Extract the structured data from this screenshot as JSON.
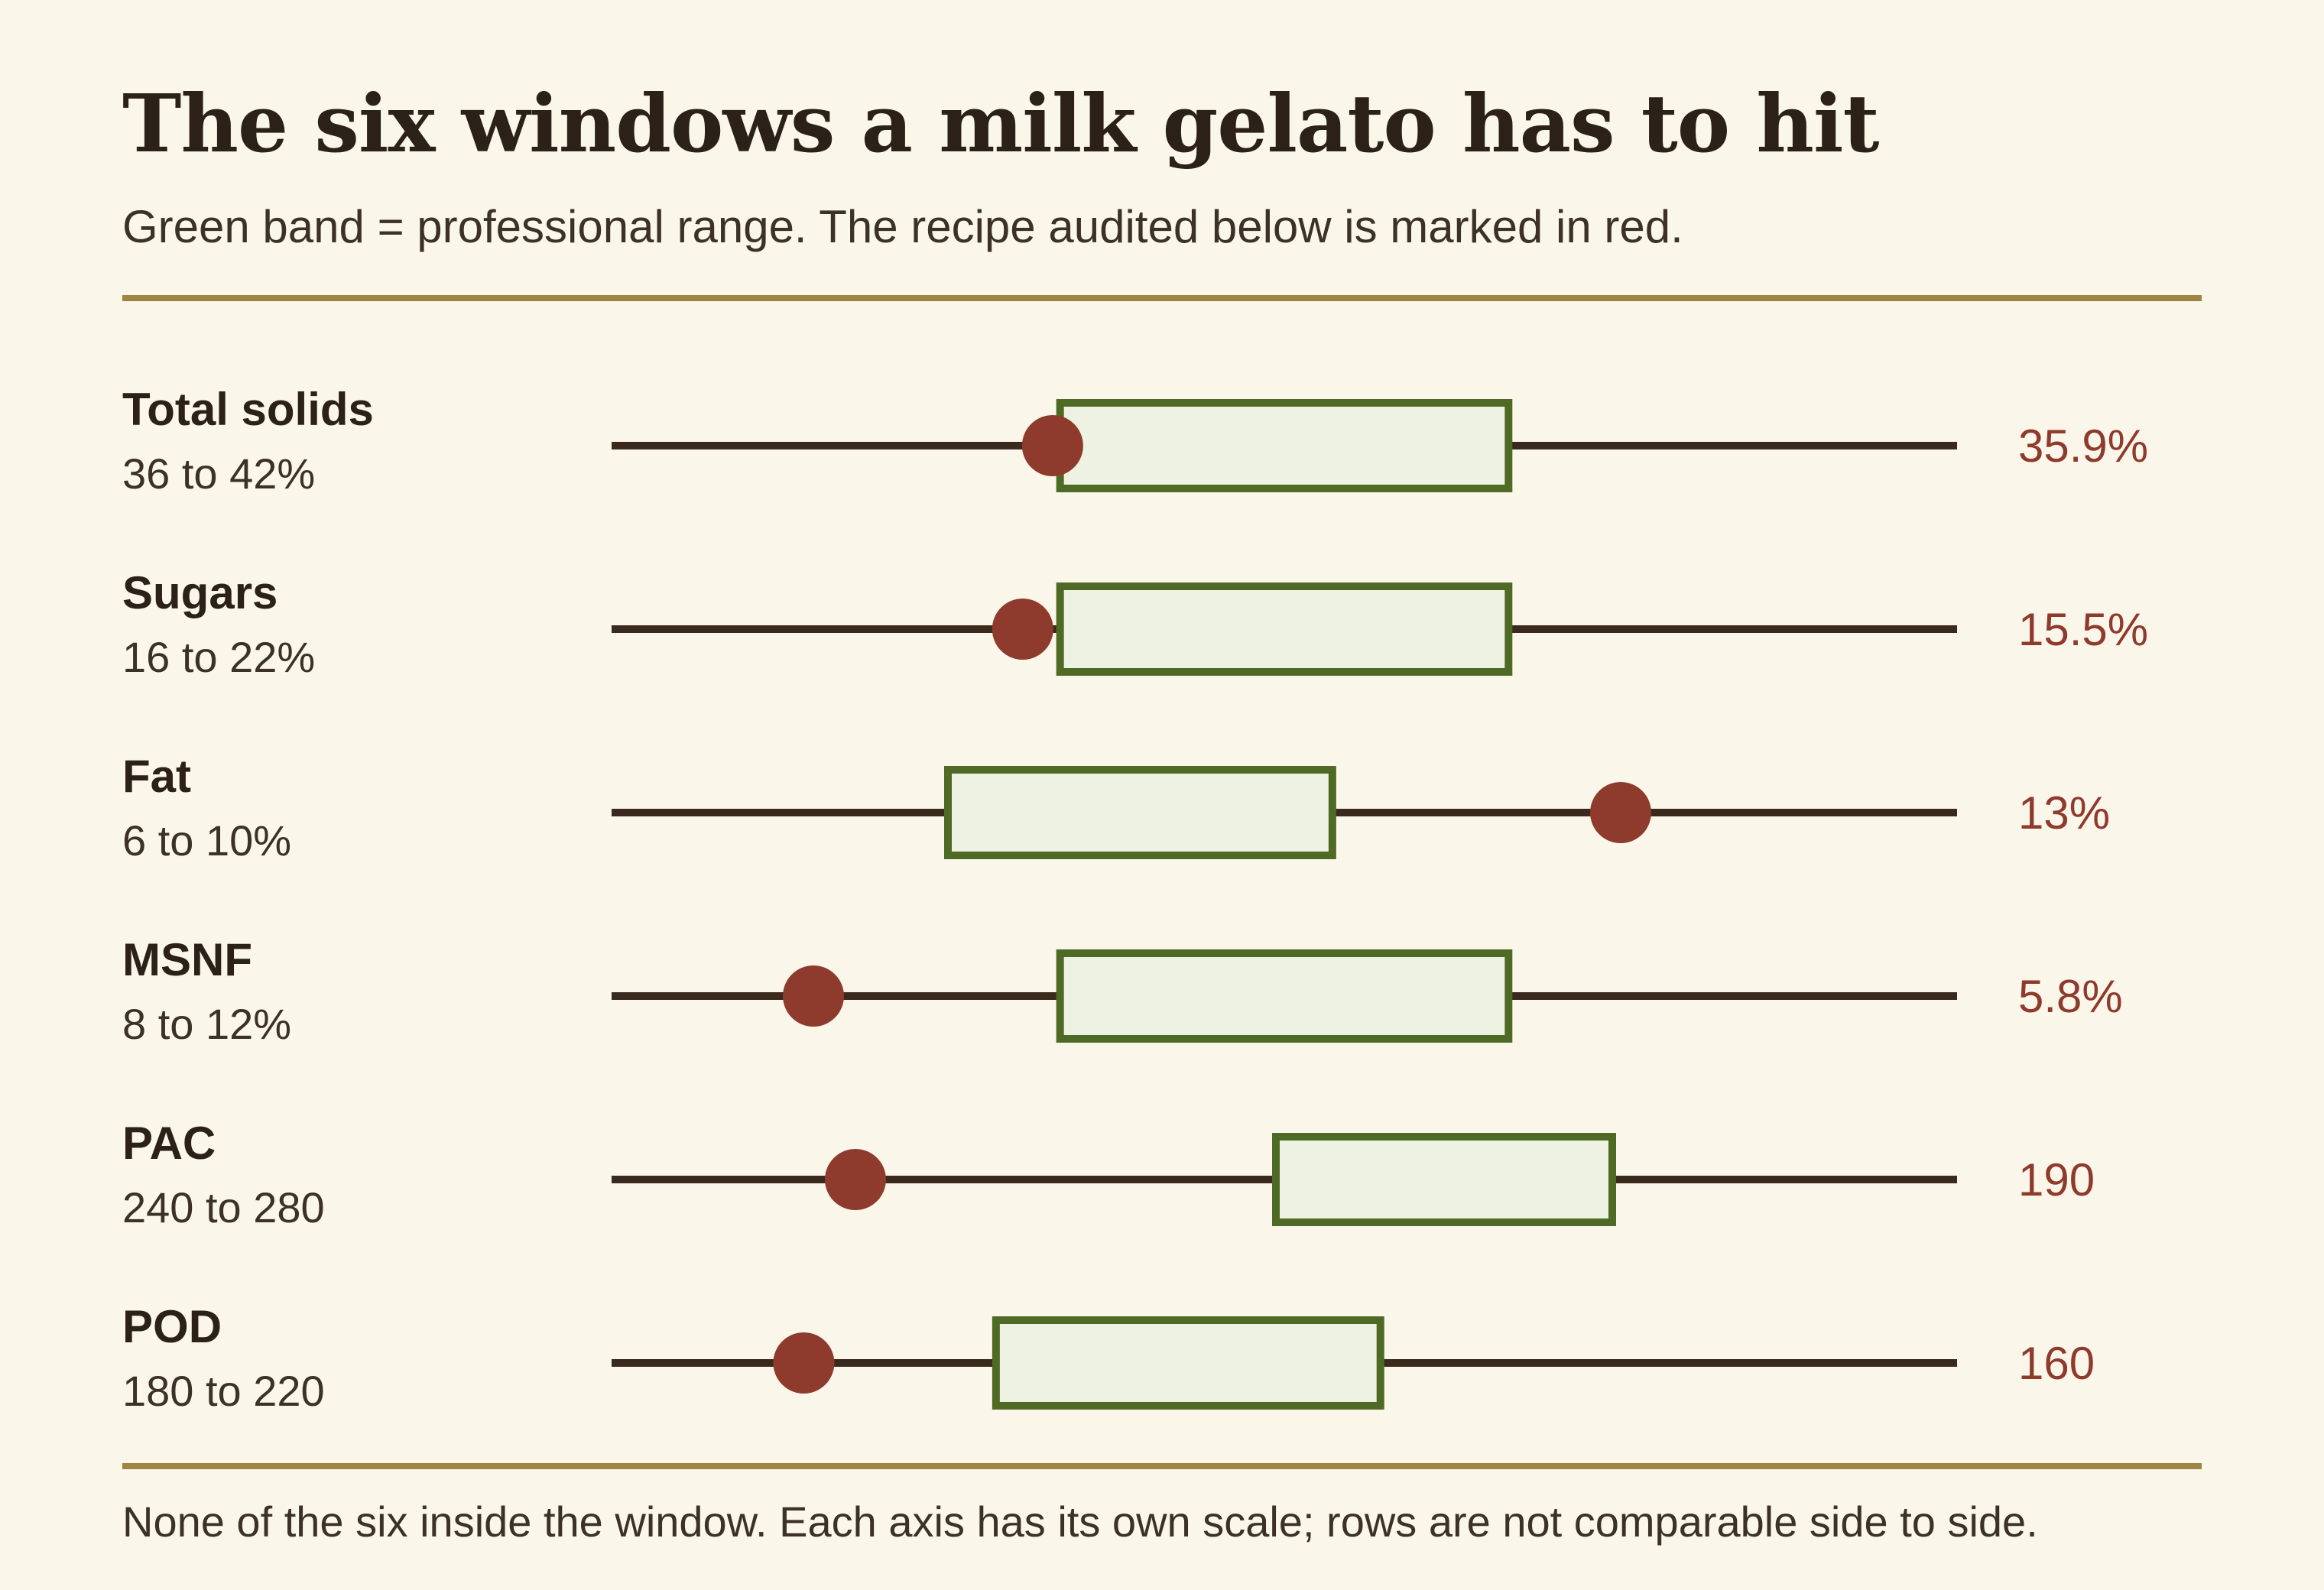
{
  "title": "The six windows a milk gelato has to hit",
  "subtitle": "Green band = professional range. The recipe audited below is marked in red.",
  "footnote": "None of the six inside the window. Each axis has its own scale; rows are not comparable side to side.",
  "colors": {
    "background": "#fbf6ea",
    "band_fill": "#eef2e2",
    "band_stroke": "#4e6a25",
    "axis_line": "#3a2a1e",
    "marker": "#8e3a2c",
    "rule": "#a08443"
  },
  "chart_data": {
    "type": "range-dot",
    "rows": [
      {
        "name": "Total solids",
        "range_label": "36 to 42%",
        "range": [
          36,
          42
        ],
        "value": 35.9,
        "value_label": "35.9%",
        "axis": [
          30,
          48
        ]
      },
      {
        "name": "Sugars",
        "range_label": "16 to 22%",
        "range": [
          16,
          22
        ],
        "value": 15.5,
        "value_label": "15.5%",
        "axis": [
          10,
          28
        ]
      },
      {
        "name": "Fat",
        "range_label": "6 to 10%",
        "range": [
          6,
          10
        ],
        "value": 13,
        "value_label": "13%",
        "axis": [
          2.5,
          16.5
        ]
      },
      {
        "name": "MSNF",
        "range_label": "8 to 12%",
        "range": [
          8,
          12
        ],
        "value": 5.8,
        "value_label": "5.8%",
        "axis": [
          4,
          16
        ]
      },
      {
        "name": "PAC",
        "range_label": "240 to 280",
        "range": [
          240,
          280
        ],
        "value": 190,
        "value_label": "190",
        "axis": [
          161,
          321
        ]
      },
      {
        "name": "POD",
        "range_label": "180 to 220",
        "range": [
          180,
          220
        ],
        "value": 160,
        "value_label": "160",
        "axis": [
          140,
          280
        ]
      }
    ]
  }
}
